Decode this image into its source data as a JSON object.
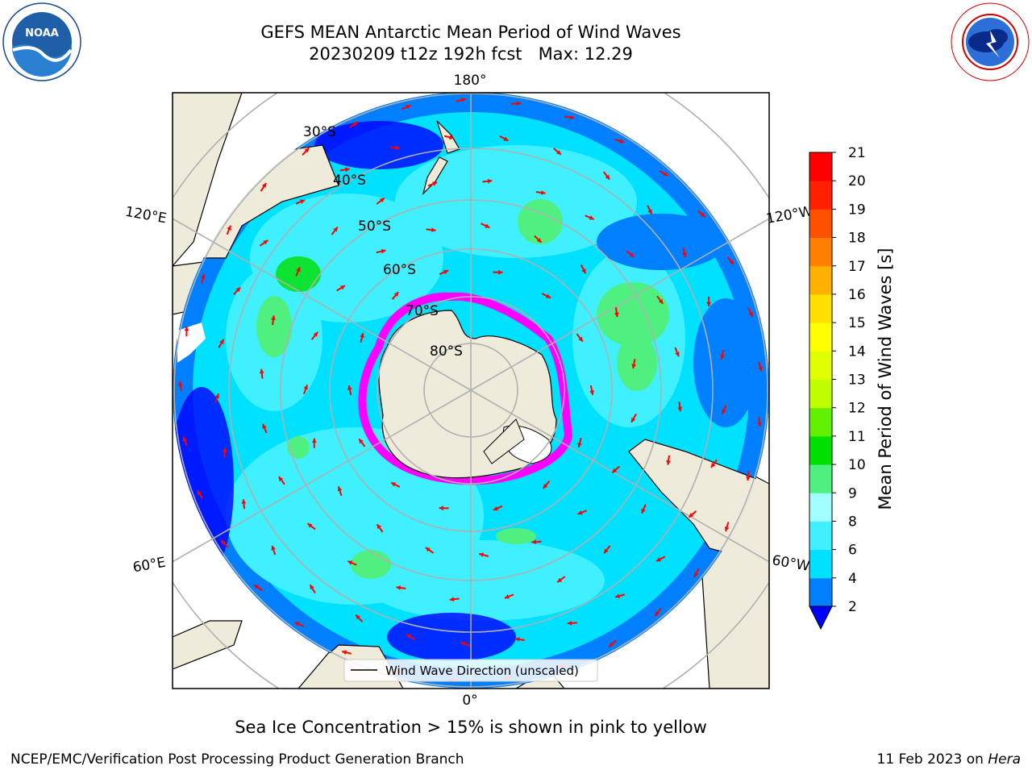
{
  "title_line1": "GEFS MEAN Antarctic Mean Period of Wind Waves",
  "title_line2": "20230209 t12z 192h fcst   Max: 12.29",
  "logos": {
    "left": {
      "name": "NOAA",
      "text": "NOAA",
      "ring_text": "NATIONAL OCEANIC AND ATMOSPHERIC ADMINISTRATION · U.S. DEPARTMENT OF COMMERCE"
    },
    "right": {
      "name": "National Weather Service",
      "ring_text": "NATIONAL WEATHER SERVICE"
    }
  },
  "map": {
    "projection": "south polar stereographic",
    "longitude_labels": {
      "top": "180°",
      "bottom": "0°",
      "upper_left": "120°E",
      "upper_right": "120°W",
      "lower_left": "60°E",
      "lower_right": "60°W"
    },
    "latitude_labels": [
      "30°S",
      "40°S",
      "50°S",
      "60°S",
      "70°S",
      "80°S"
    ],
    "legend": "Wind Wave Direction (unscaled)",
    "colors": {
      "land": "#efebda",
      "ice_edge": "#ff00ff",
      "arrows": "#ff0000",
      "grid": "#b0b0b0"
    }
  },
  "colorbar": {
    "label": "Mean Period of Wind Waves [s]",
    "ticks": [
      "2",
      "4",
      "6",
      "8",
      "9",
      "10",
      "11",
      "12",
      "13",
      "14",
      "15",
      "16",
      "17",
      "18",
      "19",
      "20",
      "21"
    ],
    "colors": [
      "#0080ff",
      "#00e0ff",
      "#40f0ff",
      "#a0ffff",
      "#50f080",
      "#00e000",
      "#60f000",
      "#c0ff00",
      "#e0ff00",
      "#ffff00",
      "#ffe000",
      "#ffb000",
      "#ff8000",
      "#ff5000",
      "#ff2000",
      "#ff0000"
    ],
    "under_color": "#0000ff"
  },
  "note": "Sea Ice Concentration > 15% is shown in pink to yellow",
  "footer_left": "NCEP/EMC/Verification Post Processing Product Generation Branch",
  "footer_date": "11 Feb 2023 on",
  "footer_machine": "Hera"
}
